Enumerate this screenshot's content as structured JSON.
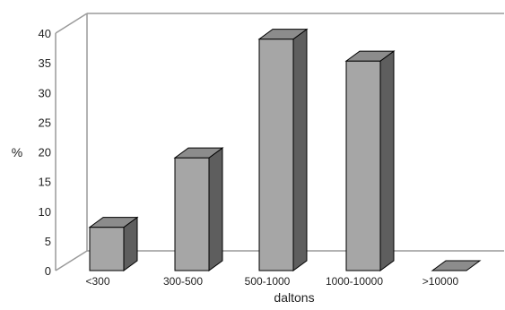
{
  "chart_data": {
    "type": "bar",
    "categories": [
      "<300",
      "300-500",
      "500-1000",
      "1000-10000",
      ">10000"
    ],
    "values": [
      7.3,
      19,
      39,
      35.3,
      0
    ],
    "xlabel": "daltons",
    "ylabel": "%",
    "ylim": [
      0,
      40
    ],
    "yticks": [
      0,
      5,
      10,
      15,
      20,
      25,
      30,
      35,
      40
    ],
    "style": "3d-column",
    "grid": false,
    "legend": "none"
  },
  "colors": {
    "bar_front": "#a6a6a6",
    "bar_top": "#8c8c8c",
    "bar_side": "#5e5e5e",
    "outline": "#000000",
    "frame": "#9a9a9a"
  }
}
